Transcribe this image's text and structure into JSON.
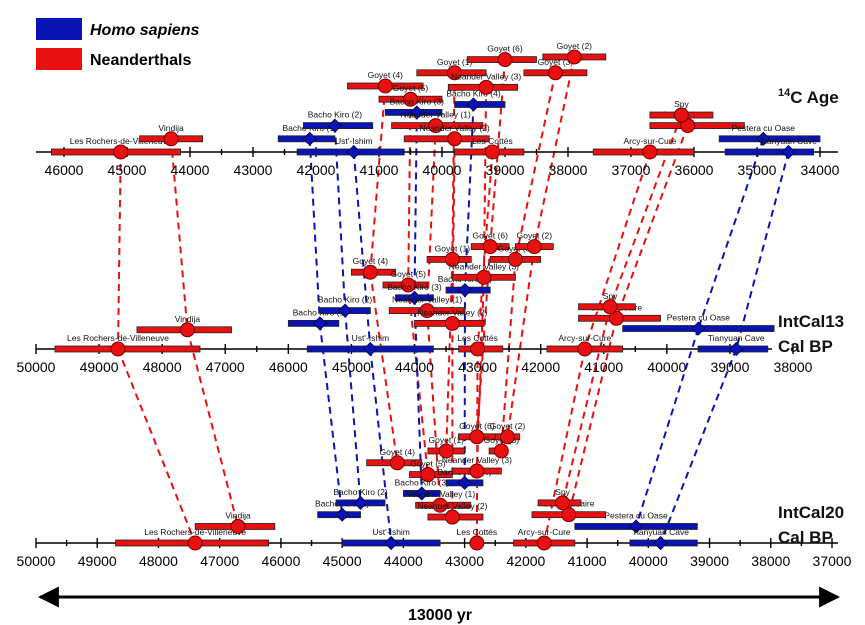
{
  "chart_data": {
    "type": "scatter",
    "colors": {
      "homo_sapiens": "#0a14b4",
      "neanderthals": "#e81010"
    },
    "legend": {
      "placement": "top-left",
      "entries": [
        {
          "key": "homo_sapiens",
          "label": "Homo sapiens",
          "italic": true
        },
        {
          "key": "neanderthals",
          "label": "Neanderthals",
          "italic": false
        }
      ]
    },
    "span_label": "13000 yr",
    "panels": [
      {
        "id": "c14",
        "label_lines": [
          "14C Age"
        ],
        "axis": {
          "min": 34000,
          "max": 46000,
          "reversed": true,
          "ticks": [
            46000,
            45000,
            44000,
            43000,
            42000,
            41000,
            40000,
            39000,
            38000,
            37000,
            36000,
            35000,
            34000
          ]
        },
        "points": [
          {
            "site": "Les Rochers-de-Villeneuve",
            "group": "neanderthals",
            "value": 45100,
            "lo": 44150,
            "hi": 46200,
            "row": 0
          },
          {
            "site": "Vindija",
            "group": "neanderthals",
            "value": 44300,
            "lo": 43800,
            "hi": 44800,
            "row": 1
          },
          {
            "site": "Bacho Kiro (1)",
            "group": "homo_sapiens",
            "value": 42100,
            "lo": 41700,
            "hi": 42600,
            "row": 1
          },
          {
            "site": "Bacho Kiro (2)",
            "group": "homo_sapiens",
            "value": 41700,
            "lo": 41100,
            "hi": 42200,
            "row": 2
          },
          {
            "site": "Ust'-Ishim",
            "group": "homo_sapiens",
            "value": 41400,
            "lo": 40600,
            "hi": 42300,
            "row": 0
          },
          {
            "site": "Goyet (4)",
            "group": "neanderthals",
            "value": 40900,
            "lo": 40300,
            "hi": 41500,
            "row": 5
          },
          {
            "site": "Goyet (5)",
            "group": "neanderthals",
            "value": 40500,
            "lo": 40000,
            "hi": 41000,
            "row": 4
          },
          {
            "site": "Bacho Kiro (3)",
            "group": "homo_sapiens",
            "value": 40400,
            "lo": 40000,
            "hi": 40900,
            "row": 3
          },
          {
            "site": "Neander Valley (1)",
            "group": "neanderthals",
            "value": 40100,
            "lo": 39350,
            "hi": 40800,
            "row": 2
          },
          {
            "site": "Goyet (1)",
            "group": "neanderthals",
            "value": 39800,
            "lo": 39300,
            "hi": 40400,
            "row": 6
          },
          {
            "site": "Neander Valley (2)",
            "group": "neanderthals",
            "value": 39800,
            "lo": 39250,
            "hi": 40600,
            "row": 1
          },
          {
            "site": "Bacho Kiro (4)",
            "group": "homo_sapiens",
            "value": 39500,
            "lo": 39000,
            "hi": 39800,
            "row": 3.6
          },
          {
            "site": "Neander Valley (3)",
            "group": "neanderthals",
            "value": 39300,
            "lo": 38800,
            "hi": 39900,
            "row": 4.9
          },
          {
            "site": "Les Cottés",
            "group": "neanderthals",
            "value": 39200,
            "lo": 38700,
            "hi": 39800,
            "row": 0
          },
          {
            "site": "Goyet (6)",
            "group": "neanderthals",
            "value": 39000,
            "lo": 38500,
            "hi": 39600,
            "row": 7
          },
          {
            "site": "Goyet (3)",
            "group": "neanderthals",
            "value": 38200,
            "lo": 37700,
            "hi": 38700,
            "row": 6
          },
          {
            "site": "Goyet (2)",
            "group": "neanderthals",
            "value": 37900,
            "lo": 37400,
            "hi": 38400,
            "row": 7.2
          },
          {
            "site": "Arcy-sur-Cure",
            "group": "neanderthals",
            "value": 36700,
            "lo": 36000,
            "hi": 37600,
            "row": 0
          },
          {
            "site": "Saint-Césaire",
            "group": "neanderthals",
            "value": 36100,
            "lo": 35200,
            "hi": 36700,
            "row": 2
          },
          {
            "site": "Spy",
            "group": "neanderthals",
            "value": 36200,
            "lo": 35700,
            "hi": 36700,
            "row": 2.8
          },
          {
            "site": "Pestera cu Oase",
            "group": "homo_sapiens",
            "value": 34900,
            "lo": 34000,
            "hi": 35600,
            "row": 1
          },
          {
            "site": "Tianyuan Cave",
            "group": "homo_sapiens",
            "value": 34500,
            "lo": 34100,
            "hi": 35500,
            "row": 0
          }
        ]
      },
      {
        "id": "intcal13",
        "label_lines": [
          "IntCal13",
          "Cal BP"
        ],
        "axis": {
          "min": 37500,
          "max": 50000,
          "reversed": true,
          "ticks": [
            50000,
            49000,
            48000,
            47000,
            46000,
            45000,
            44000,
            43000,
            42000,
            41000,
            40000,
            39000,
            38000
          ]
        },
        "points": [
          {
            "site": "Les Rochers-de-Villeneuve",
            "group": "neanderthals",
            "value": 48700,
            "lo": 47400,
            "hi": 49700,
            "row": 0
          },
          {
            "site": "Vindija",
            "group": "neanderthals",
            "value": 47600,
            "lo": 46900,
            "hi": 48400,
            "row": 1.5
          },
          {
            "site": "Bacho Kiro (1)",
            "group": "homo_sapiens",
            "value": 45500,
            "lo": 45200,
            "hi": 46000,
            "row": 2
          },
          {
            "site": "Bacho Kiro (2)",
            "group": "homo_sapiens",
            "value": 45100,
            "lo": 44700,
            "hi": 45500,
            "row": 3
          },
          {
            "site": "Ust'-Ishim",
            "group": "homo_sapiens",
            "value": 44700,
            "lo": 43700,
            "hi": 45700,
            "row": 0
          },
          {
            "site": "Goyet (4)",
            "group": "neanderthals",
            "value": 44700,
            "lo": 44300,
            "hi": 45000,
            "row": 6
          },
          {
            "site": "Goyet (5)",
            "group": "neanderthals",
            "value": 44100,
            "lo": 43800,
            "hi": 44500,
            "row": 5
          },
          {
            "site": "Bacho Kiro (3)",
            "group": "homo_sapiens",
            "value": 44000,
            "lo": 43700,
            "hi": 44300,
            "row": 4
          },
          {
            "site": "Neander Valley (1)",
            "group": "neanderthals",
            "value": 43800,
            "lo": 43200,
            "hi": 44400,
            "row": 3
          },
          {
            "site": "Goyet (1)",
            "group": "neanderthals",
            "value": 43400,
            "lo": 43100,
            "hi": 43800,
            "row": 7
          },
          {
            "site": "Neander Valley (2)",
            "group": "neanderthals",
            "value": 43400,
            "lo": 42900,
            "hi": 44000,
            "row": 2
          },
          {
            "site": "Bacho Kiro (4)",
            "group": "homo_sapiens",
            "value": 43200,
            "lo": 42800,
            "hi": 43500,
            "row": 4.6
          },
          {
            "site": "Neander Valley (3)",
            "group": "neanderthals",
            "value": 42900,
            "lo": 42400,
            "hi": 43400,
            "row": 5.6
          },
          {
            "site": "Les Cottés",
            "group": "neanderthals",
            "value": 43000,
            "lo": 42600,
            "hi": 43300,
            "row": 0
          },
          {
            "site": "Goyet (6)",
            "group": "neanderthals",
            "value": 42800,
            "lo": 42500,
            "hi": 43100,
            "row": 8
          },
          {
            "site": "Goyet (3)",
            "group": "neanderthals",
            "value": 42400,
            "lo": 42000,
            "hi": 42800,
            "row": 7
          },
          {
            "site": "Goyet (2)",
            "group": "neanderthals",
            "value": 42100,
            "lo": 41800,
            "hi": 42400,
            "row": 8
          },
          {
            "site": "Arcy-sur-Cure",
            "group": "neanderthals",
            "value": 41300,
            "lo": 40700,
            "hi": 41900,
            "row": 0
          },
          {
            "site": "Saint-Césaire",
            "group": "neanderthals",
            "value": 40800,
            "lo": 40100,
            "hi": 41400,
            "row": 2.4
          },
          {
            "site": "Spy",
            "group": "neanderthals",
            "value": 40900,
            "lo": 40500,
            "hi": 41400,
            "row": 3.3
          },
          {
            "site": "Pestera cu Oase",
            "group": "homo_sapiens",
            "value": 39500,
            "lo": 38300,
            "hi": 40700,
            "row": 1.6
          },
          {
            "site": "Tianyuan Cave",
            "group": "homo_sapiens",
            "value": 38900,
            "lo": 38400,
            "hi": 39500,
            "row": 0
          }
        ]
      },
      {
        "id": "intcal20",
        "label_lines": [
          "IntCal20",
          "Cal BP"
        ],
        "axis": {
          "min": 37000,
          "max": 50000,
          "reversed": true,
          "ticks": [
            50000,
            49000,
            48000,
            47000,
            46000,
            45000,
            44000,
            43000,
            42000,
            41000,
            40000,
            39000,
            38000,
            37000
          ]
        },
        "points": [
          {
            "site": "Les Rochers-de-Villeneuve",
            "group": "neanderthals",
            "value": 47400,
            "lo": 46200,
            "hi": 48700,
            "row": 0
          },
          {
            "site": "Vindija",
            "group": "neanderthals",
            "value": 46700,
            "lo": 46100,
            "hi": 47400,
            "row": 1.4
          },
          {
            "site": "Bacho Kiro (1)",
            "group": "homo_sapiens",
            "value": 45000,
            "lo": 44700,
            "hi": 45400,
            "row": 2.4
          },
          {
            "site": "Bacho Kiro (2)",
            "group": "homo_sapiens",
            "value": 44700,
            "lo": 44300,
            "hi": 45100,
            "row": 3.4
          },
          {
            "site": "Ust'-Ishim",
            "group": "homo_sapiens",
            "value": 44200,
            "lo": 43400,
            "hi": 45000,
            "row": 0
          },
          {
            "site": "Goyet (4)",
            "group": "neanderthals",
            "value": 44100,
            "lo": 43700,
            "hi": 44600,
            "row": 6.8
          },
          {
            "site": "Goyet (5)",
            "group": "neanderthals",
            "value": 43600,
            "lo": 43200,
            "hi": 43900,
            "row": 5.8
          },
          {
            "site": "Bacho Kiro (3)",
            "group": "homo_sapiens",
            "value": 43700,
            "lo": 43400,
            "hi": 44000,
            "row": 4.2
          },
          {
            "site": "Neander Valley (1)",
            "group": "neanderthals",
            "value": 43400,
            "lo": 42900,
            "hi": 43800,
            "row": 3.2
          },
          {
            "site": "Goyet (1)",
            "group": "neanderthals",
            "value": 43300,
            "lo": 43000,
            "hi": 43600,
            "row": 7.8
          },
          {
            "site": "Neander Valley (2)",
            "group": "neanderthals",
            "value": 43200,
            "lo": 42700,
            "hi": 43600,
            "row": 2.2
          },
          {
            "site": "Bacho Kiro (4)",
            "group": "homo_sapiens",
            "value": 43000,
            "lo": 42700,
            "hi": 43300,
            "row": 5.1
          },
          {
            "site": "Neander Valley (3)",
            "group": "neanderthals",
            "value": 42800,
            "lo": 42400,
            "hi": 43200,
            "row": 6.1
          },
          {
            "site": "Les Cottés",
            "group": "neanderthals",
            "value": 42800,
            "lo": 42700,
            "hi": 42900,
            "row": 0
          },
          {
            "site": "Goyet (6)",
            "group": "neanderthals",
            "value": 42800,
            "lo": 42500,
            "hi": 43100,
            "row": 9
          },
          {
            "site": "Goyet (3)",
            "group": "neanderthals",
            "value": 42400,
            "lo": 42300,
            "hi": 42600,
            "row": 7.8
          },
          {
            "site": "Goyet (2)",
            "group": "neanderthals",
            "value": 42300,
            "lo": 42100,
            "hi": 42500,
            "row": 9
          },
          {
            "site": "Arcy-sur-Cure",
            "group": "neanderthals",
            "value": 41700,
            "lo": 41200,
            "hi": 42200,
            "row": 0
          },
          {
            "site": "Saint-Césaire",
            "group": "neanderthals",
            "value": 41300,
            "lo": 40700,
            "hi": 41900,
            "row": 2.4
          },
          {
            "site": "Spy",
            "group": "neanderthals",
            "value": 41400,
            "lo": 41100,
            "hi": 41800,
            "row": 3.4
          },
          {
            "site": "Pestera cu Oase",
            "group": "homo_sapiens",
            "value": 40200,
            "lo": 39200,
            "hi": 41200,
            "row": 1.4
          },
          {
            "site": "Tianyuan Cave",
            "group": "homo_sapiens",
            "value": 39800,
            "lo": 39200,
            "hi": 40300,
            "row": 0
          }
        ]
      }
    ]
  }
}
